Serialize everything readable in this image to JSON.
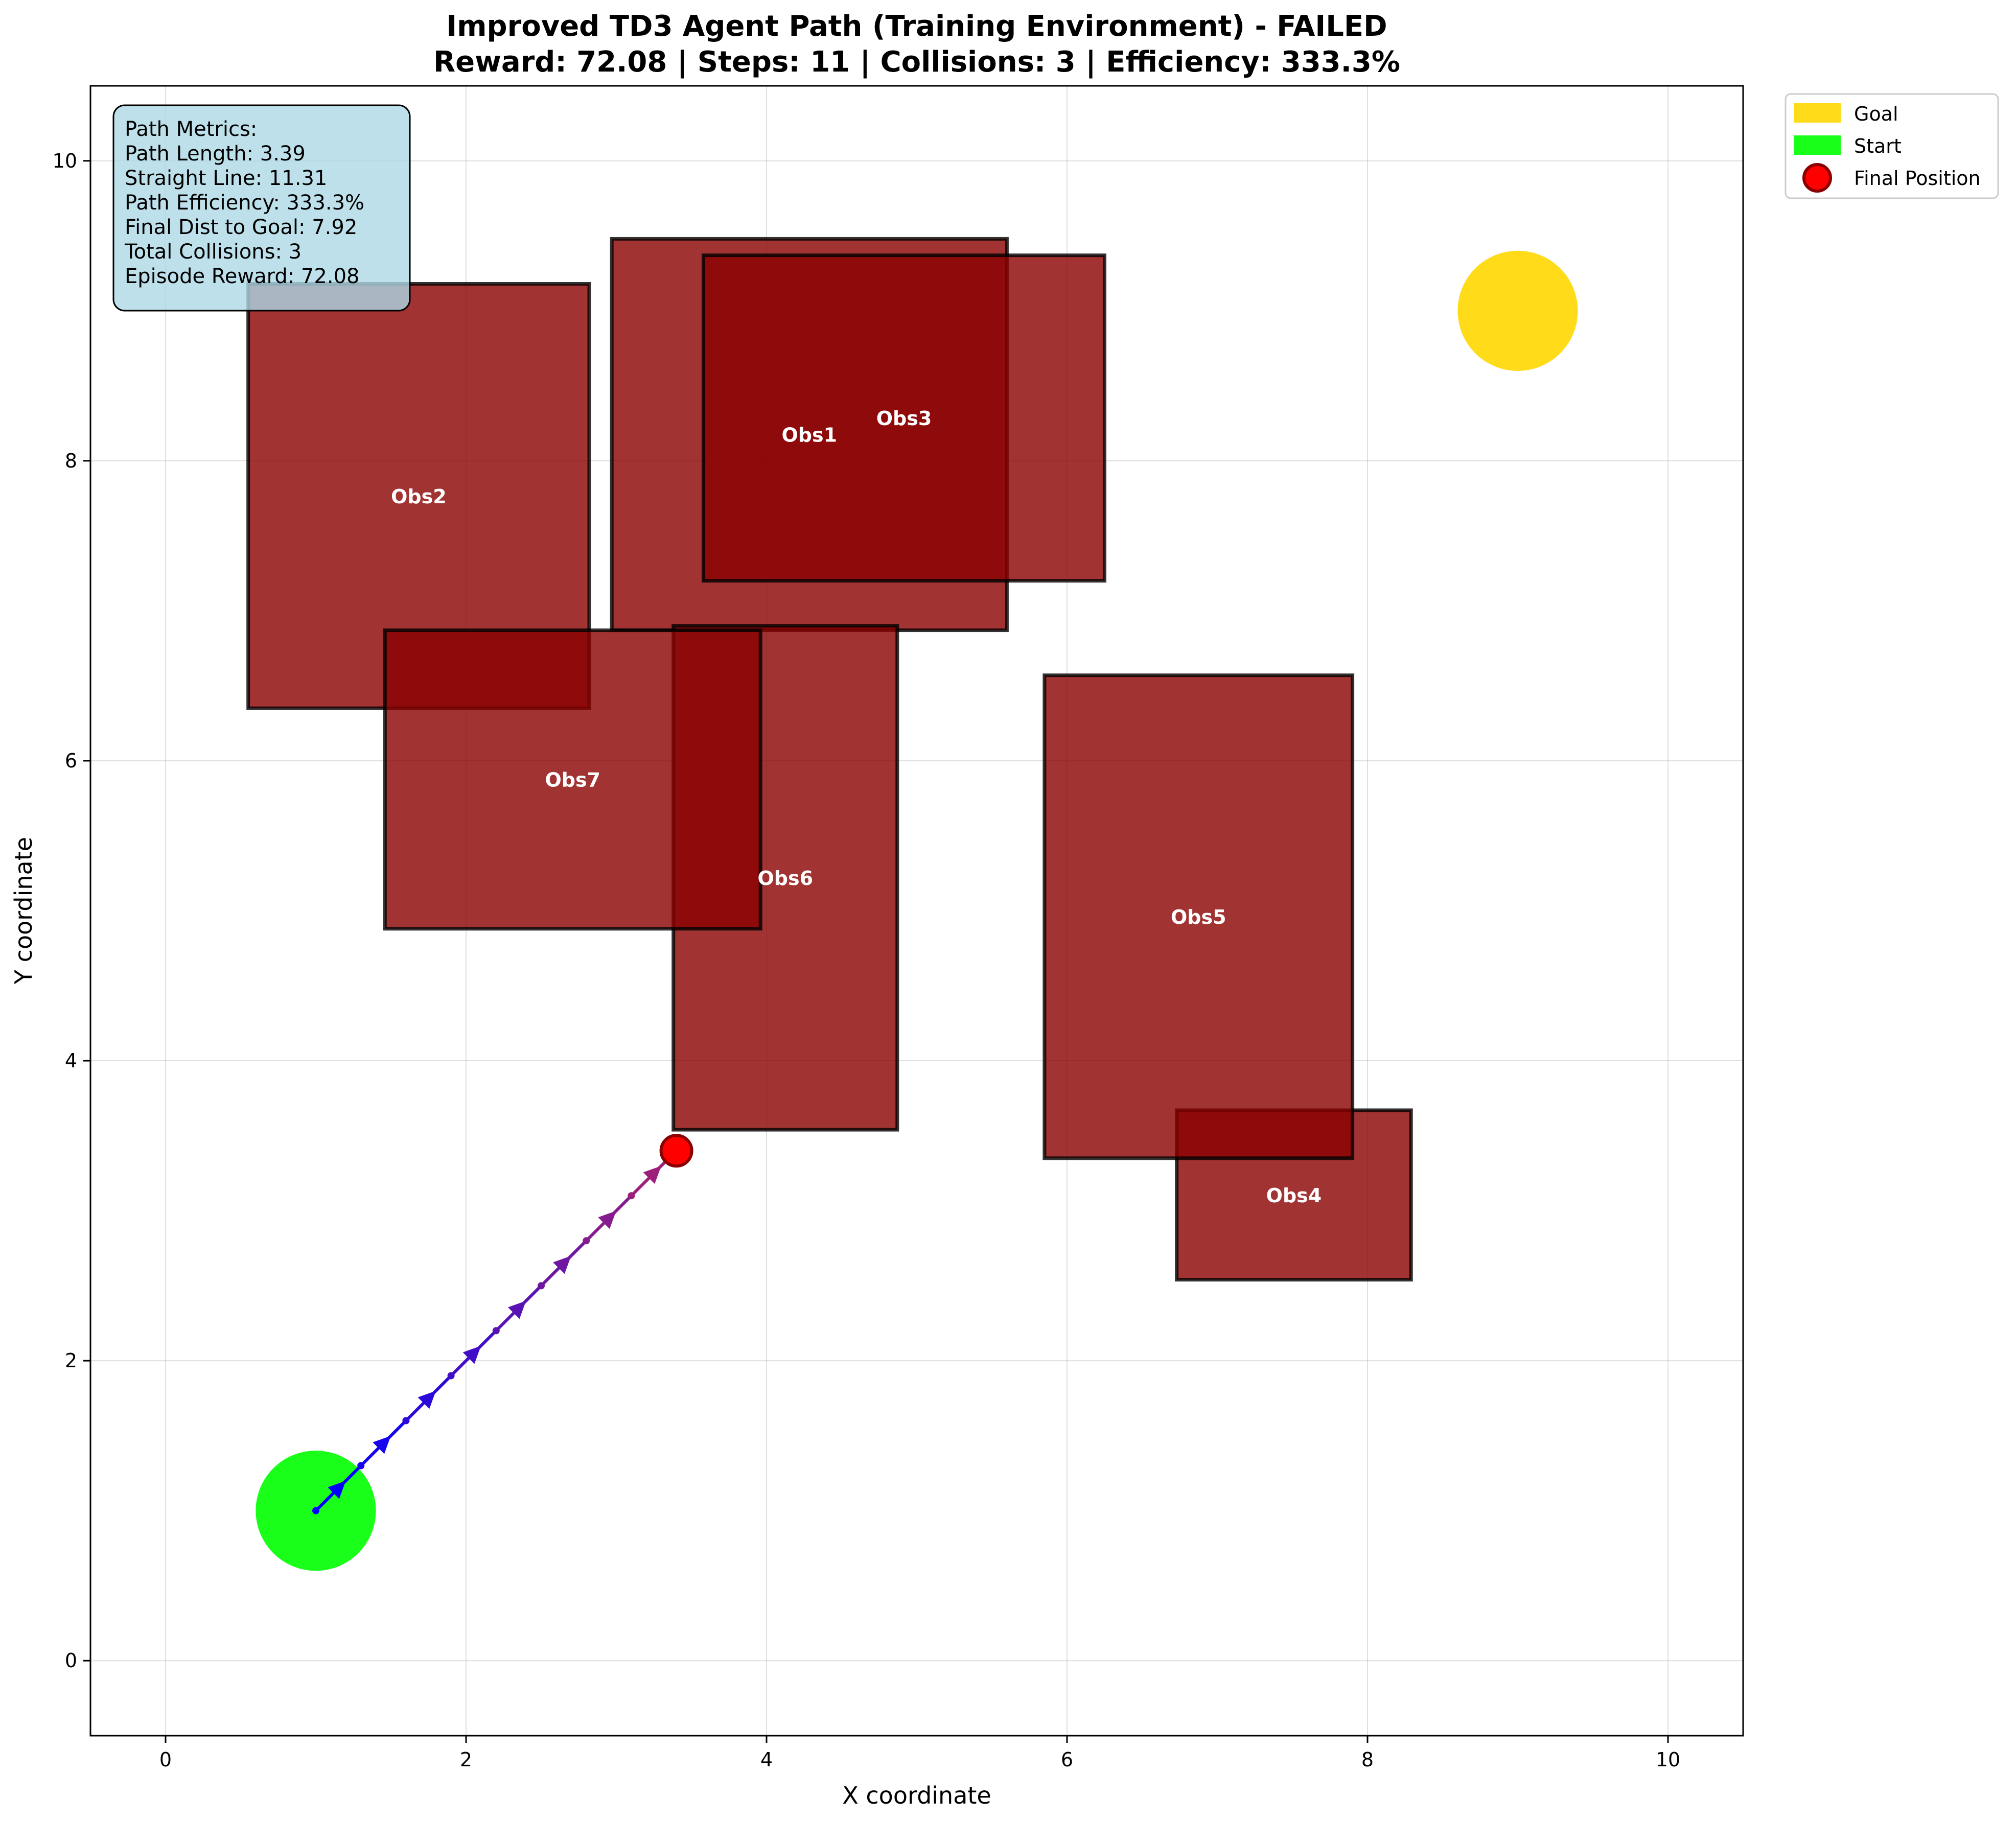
{
  "chart_data": {
    "type": "scatter",
    "title_line1": "Improved TD3 Agent Path (Training Environment) - FAILED",
    "title_line2": "Reward: 72.08 | Steps: 11 | Collisions: 3 | Efficiency: 333.3%",
    "xlabel": "X coordinate",
    "ylabel": "Y coordinate",
    "xlim": [
      -0.5,
      10.5
    ],
    "ylim": [
      -0.5,
      10.5
    ],
    "xticks": [
      0,
      2,
      4,
      6,
      8,
      10
    ],
    "yticks": [
      0,
      2,
      4,
      6,
      8,
      10
    ],
    "grid": true,
    "legend_placement": "outside top-right",
    "legend": [
      {
        "label": "Goal",
        "kind": "patch",
        "color": "#FFD700"
      },
      {
        "label": "Start",
        "kind": "patch",
        "color": "#00FF00"
      },
      {
        "label": "Final Position",
        "kind": "marker",
        "color": "#FF0000"
      }
    ],
    "obstacles": [
      {
        "name": "Obs1",
        "x0": 2.97,
        "x1": 5.6,
        "y0": 6.87,
        "y1": 9.48
      },
      {
        "name": "Obs2",
        "x0": 0.55,
        "x1": 2.82,
        "y0": 6.35,
        "y1": 9.18
      },
      {
        "name": "Obs3",
        "x0": 3.58,
        "x1": 6.25,
        "y0": 7.2,
        "y1": 9.37
      },
      {
        "name": "Obs4",
        "x0": 6.73,
        "x1": 8.29,
        "y0": 2.54,
        "y1": 3.67
      },
      {
        "name": "Obs5",
        "x0": 5.85,
        "x1": 7.9,
        "y0": 3.35,
        "y1": 6.57
      },
      {
        "name": "Obs6",
        "x0": 3.38,
        "x1": 4.87,
        "y0": 3.54,
        "y1": 6.9
      },
      {
        "name": "Obs7",
        "x0": 1.46,
        "x1": 3.96,
        "y0": 4.88,
        "y1": 6.87
      }
    ],
    "goal": {
      "x": 9.0,
      "y": 9.0,
      "radius": 0.4,
      "color": "#FFD700"
    },
    "start": {
      "x": 1.0,
      "y": 1.0,
      "radius": 0.4,
      "color": "#00FF00"
    },
    "final_position": {
      "x": 3.4,
      "y": 3.4,
      "color": "#FF0000"
    },
    "path": {
      "x": [
        1.0,
        1.3,
        1.6,
        1.9,
        2.2,
        2.5,
        2.8,
        3.1,
        3.4
      ],
      "y": [
        1.0,
        1.3,
        1.6,
        1.9,
        2.2,
        2.5,
        2.8,
        3.1,
        3.4
      ],
      "color_start": "#0000FF",
      "color_end": "#9B1F7B"
    },
    "metrics_box": [
      "Path Metrics:",
      "Path Length: 3.39",
      "Straight Line: 11.31",
      "Path Efficiency: 333.3%",
      "Final Dist to Goal: 7.92",
      "Total Collisions: 3",
      "Episode Reward: 72.08"
    ]
  }
}
